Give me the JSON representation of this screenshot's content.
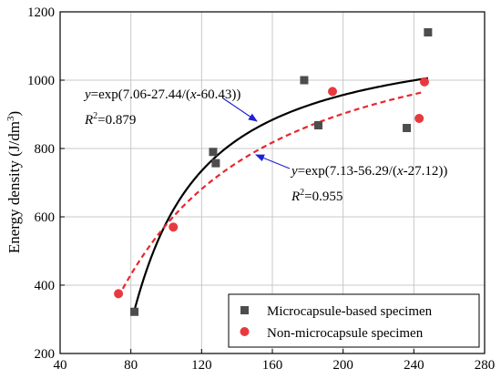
{
  "chart_data": {
    "type": "scatter",
    "ylabel_main": "Energy density (J/dm",
    "ylabel_sup": "3",
    "ylabel_close": ")",
    "xlim": [
      40,
      280
    ],
    "ylim": [
      200,
      1200
    ],
    "x_ticks": [
      "40",
      "80",
      "120",
      "160",
      "200",
      "240",
      "280"
    ],
    "y_ticks": [
      "200",
      "400",
      "600",
      "800",
      "1000",
      "1200"
    ],
    "grid": true,
    "legend_position": "bottom-right",
    "series": [
      {
        "name": "Microcapsule-based specimen",
        "marker": "square",
        "color": "#4d4d4d",
        "points": [
          [
            82,
            322
          ],
          [
            126.5,
            790
          ],
          [
            128,
            757
          ],
          [
            178,
            1000
          ],
          [
            186,
            868
          ],
          [
            236,
            860
          ],
          [
            248,
            1140
          ]
        ]
      },
      {
        "name": "Non-microcapsule specimen",
        "marker": "circle",
        "color": "#e8393f",
        "points": [
          [
            73,
            375
          ],
          [
            104,
            570
          ],
          [
            194,
            967
          ],
          [
            243,
            888
          ],
          [
            246,
            995
          ]
        ]
      }
    ],
    "fits": [
      {
        "series": "Microcapsule-based specimen",
        "a": 7.06,
        "b": 27.44,
        "c": 60.43,
        "x_range": [
          82,
          248
        ],
        "line_style": "solid",
        "color": "#000000",
        "eq_y": "y",
        "eq_body": "=exp(7.06-27.44/(",
        "eq_x": "x",
        "eq_tail": "-60.43))",
        "r2_base": "R",
        "r2_sup": "2",
        "r2_value": "=0.879"
      },
      {
        "series": "Non-microcapsule specimen",
        "a": 7.13,
        "b": 56.29,
        "c": 27.12,
        "x_range": [
          73,
          246
        ],
        "line_style": "dashed",
        "color": "#e8262e",
        "eq_y": "y",
        "eq_body": "=exp(7.13-56.29/(",
        "eq_x": "x",
        "eq_tail": "-27.12))",
        "r2_base": "R",
        "r2_sup": "2",
        "r2_value": "=0.955"
      }
    ],
    "annotation_arrow_color": "#1f1fd6"
  }
}
